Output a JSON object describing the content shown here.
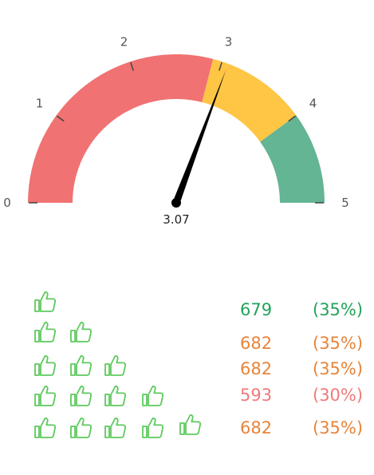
{
  "gauge": {
    "min": 0,
    "max": 5,
    "value": 3.07,
    "value_label": "3.07",
    "tick_labels": [
      "0",
      "1",
      "2",
      "3",
      "4",
      "5"
    ],
    "bands": [
      {
        "from": 0,
        "to": 2.9,
        "color": "#f07272"
      },
      {
        "from": 2.9,
        "to": 4,
        "color": "#ffc545"
      },
      {
        "from": 4,
        "to": 5,
        "color": "#63b593"
      }
    ],
    "needle_color": "#000000"
  },
  "ratings": {
    "thumb_icon": "thumbs-up-icon",
    "thumb_color": "#5ec95e",
    "rows": [
      {
        "stars": 1,
        "count": "679",
        "percent": "(35%)",
        "color": "#22a35a"
      },
      {
        "stars": 2,
        "count": "682",
        "percent": "(35%)",
        "color": "#e8843a"
      },
      {
        "stars": 3,
        "count": "682",
        "percent": "(35%)",
        "color": "#e8843a"
      },
      {
        "stars": 4,
        "count": "593",
        "percent": "(30%)",
        "color": "#f07a7a"
      },
      {
        "stars": 5,
        "count": "682",
        "percent": "(35%)",
        "color": "#e8843a"
      }
    ]
  }
}
